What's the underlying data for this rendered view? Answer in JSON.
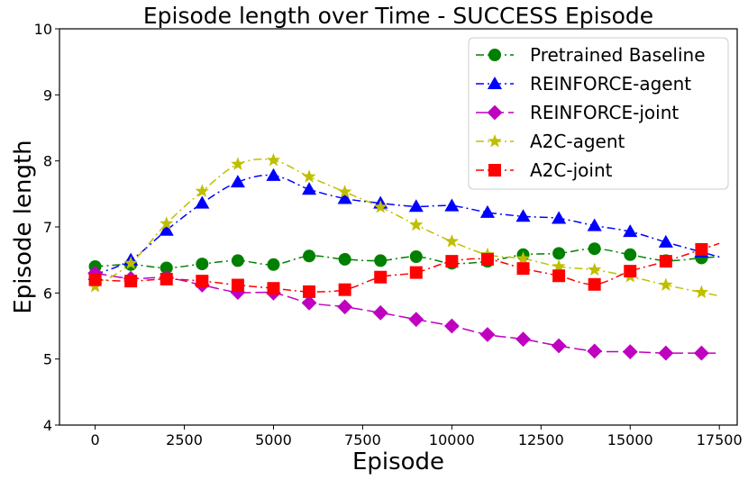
{
  "chart_data": {
    "type": "line",
    "title": "Episode length over Time - SUCCESS Episode",
    "xlabel": "Episode",
    "ylabel": "Episode length",
    "xlim": [
      -1000,
      18000
    ],
    "ylim": [
      4,
      10
    ],
    "xticks": [
      0,
      2500,
      5000,
      7500,
      10000,
      12500,
      15000,
      17500
    ],
    "yticks": [
      4,
      5,
      6,
      7,
      8,
      9,
      10
    ],
    "grid": false,
    "legend_position": "top-right",
    "x": [
      0,
      1000,
      2000,
      3000,
      4000,
      5000,
      6000,
      7000,
      8000,
      9000,
      10000,
      11000,
      12000,
      13000,
      14000,
      15000,
      16000,
      17000
    ],
    "series": [
      {
        "name": "Pretrained Baseline",
        "color": "#008000",
        "marker": "circle",
        "values": [
          6.4,
          6.43,
          6.38,
          6.44,
          6.49,
          6.43,
          6.56,
          6.51,
          6.49,
          6.55,
          6.45,
          6.48,
          6.58,
          6.6,
          6.67,
          6.58,
          6.49,
          6.53
        ]
      },
      {
        "name": "REINFORCE-agent",
        "color": "#0000ff",
        "marker": "triangle",
        "values": [
          6.28,
          6.5,
          6.95,
          7.36,
          7.68,
          7.78,
          7.57,
          7.43,
          7.36,
          7.31,
          7.32,
          7.22,
          7.16,
          7.13,
          7.02,
          6.93,
          6.77,
          6.62
        ]
      },
      {
        "name": "REINFORCE-joint",
        "color": "#bf00bf",
        "marker": "diamond",
        "values": [
          6.3,
          6.22,
          6.23,
          6.12,
          6.01,
          6.0,
          5.85,
          5.79,
          5.7,
          5.6,
          5.5,
          5.37,
          5.3,
          5.2,
          5.12,
          5.11,
          5.09,
          5.09
        ]
      },
      {
        "name": "A2C-agent",
        "color": "#bfbf00",
        "marker": "star",
        "values": [
          6.1,
          6.45,
          7.05,
          7.54,
          7.95,
          8.01,
          7.76,
          7.53,
          7.3,
          7.03,
          6.78,
          6.58,
          6.52,
          6.4,
          6.35,
          6.25,
          6.12,
          6.01
        ]
      },
      {
        "name": "A2C-joint",
        "color": "#ff0000",
        "marker": "square",
        "values": [
          6.2,
          6.18,
          6.21,
          6.18,
          6.12,
          6.07,
          6.02,
          6.05,
          6.24,
          6.31,
          6.48,
          6.51,
          6.37,
          6.26,
          6.13,
          6.33,
          6.48,
          6.66
        ]
      }
    ]
  }
}
